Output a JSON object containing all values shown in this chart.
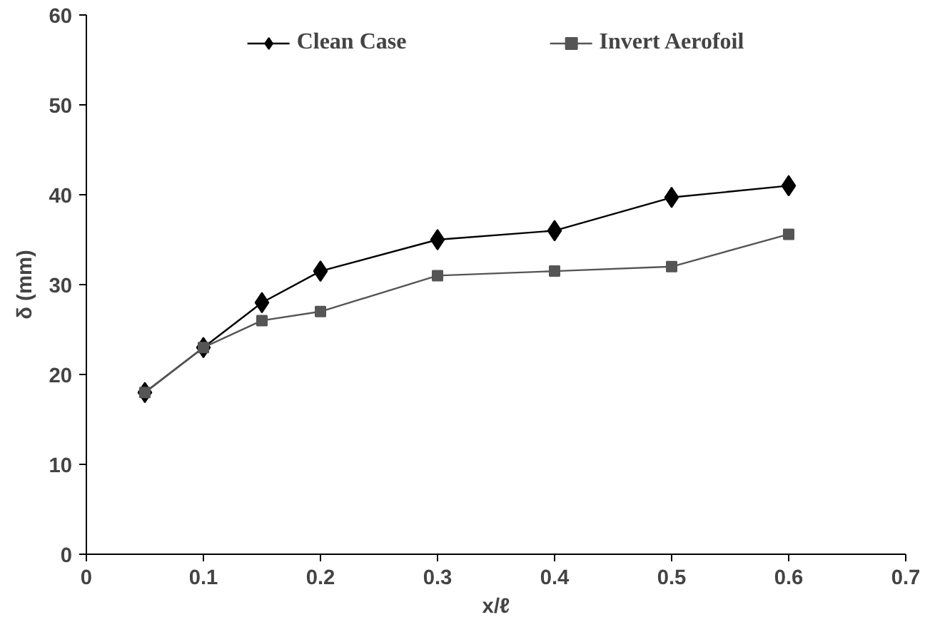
{
  "chart_data": {
    "type": "line",
    "xlabel": "x/ℓ",
    "ylabel": "δ (mm)",
    "x": [
      0.05,
      0.1,
      0.15,
      0.2,
      0.3,
      0.4,
      0.5,
      0.6
    ],
    "series": [
      {
        "name": "Clean Case",
        "color": "#000000",
        "marker": "diamond",
        "values": [
          18,
          23,
          28,
          31.5,
          35,
          36,
          39.7,
          41
        ]
      },
      {
        "name": "Invert Aerofoil",
        "color": "#555555",
        "marker": "square",
        "values": [
          18,
          23,
          26,
          27,
          31,
          31.5,
          32,
          35.6
        ]
      }
    ],
    "xlim": [
      0,
      0.7
    ],
    "xticks": [
      0,
      0.1,
      0.2,
      0.3,
      0.4,
      0.5,
      0.6,
      0.7
    ],
    "ylim": [
      0,
      60
    ],
    "yticks": [
      0,
      10,
      20,
      30,
      40,
      50,
      60
    ],
    "grid": false,
    "legend": "top",
    "line_style": "solid"
  }
}
